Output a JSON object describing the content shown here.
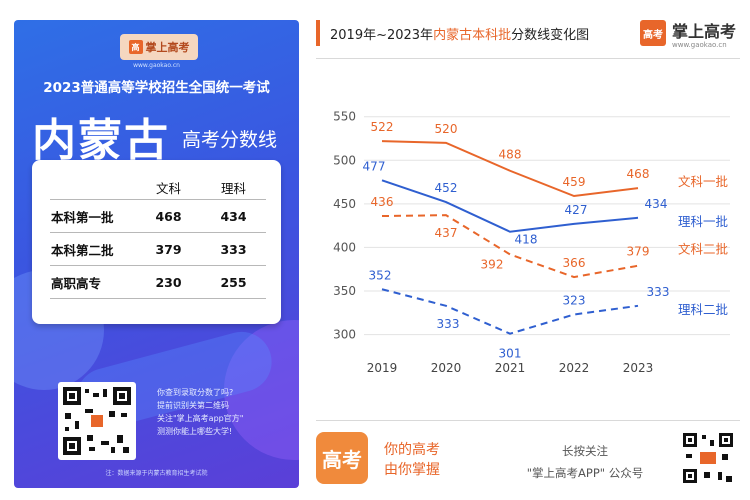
{
  "poster": {
    "logo_text": "掌上高考",
    "site": "www.gaokao.cn",
    "subtitle": "2023普通高等学校招生全国统一考试",
    "region": "内蒙古",
    "score_line_label": "高考分数线",
    "table": {
      "headers": [
        "",
        "文科",
        "理科"
      ],
      "rows": [
        [
          "本科第一批",
          "468",
          "434"
        ],
        [
          "本科第二批",
          "379",
          "333"
        ],
        [
          "高职高专",
          "230",
          "255"
        ]
      ]
    },
    "promo_lines": [
      "你查到录取分数了吗?",
      "提前识别关第二维码",
      "关注\"掌上高考app官方\"",
      "测测你能上哪些大学!"
    ],
    "footer": "注：数据来源于内蒙古教育招生考试院"
  },
  "header": {
    "title_prefix": "2019年~2023年",
    "title_highlight": "内蒙古本科批",
    "title_suffix": "分数线变化图",
    "brand_name": "掌上高考",
    "brand_url": "www.gaokao.cn",
    "brand_icon": "高考"
  },
  "colors": {
    "orange": "#e8662a",
    "blue": "#2f5fd0",
    "grid": "#e3e3e3"
  },
  "chart_data": {
    "type": "line",
    "x": [
      "2019",
      "2020",
      "2021",
      "2022",
      "2023"
    ],
    "ylim": [
      280,
      560
    ],
    "yticks": [
      300,
      350,
      400,
      450,
      500,
      550
    ],
    "series": [
      {
        "name": "文科一批",
        "values": [
          522,
          520,
          488,
          459,
          468
        ],
        "color": "#e8662a",
        "dashed": false
      },
      {
        "name": "理科一批",
        "values": [
          477,
          452,
          418,
          427,
          434
        ],
        "color": "#2f5fd0",
        "dashed": false
      },
      {
        "name": "文科二批",
        "values": [
          436,
          437,
          392,
          366,
          379
        ],
        "color": "#e8662a",
        "dashed": true
      },
      {
        "name": "理科二批",
        "values": [
          352,
          333,
          301,
          323,
          333
        ],
        "color": "#2f5fd0",
        "dashed": true
      }
    ],
    "title": "2019年~2023年内蒙古本科批分数线变化图",
    "grid": true
  },
  "footer": {
    "logo_text": "高考",
    "slogan_lines": [
      "你的高考",
      "由你掌握"
    ],
    "follow_lines": [
      "长按关注",
      "\"掌上高考APP\" 公众号"
    ]
  }
}
